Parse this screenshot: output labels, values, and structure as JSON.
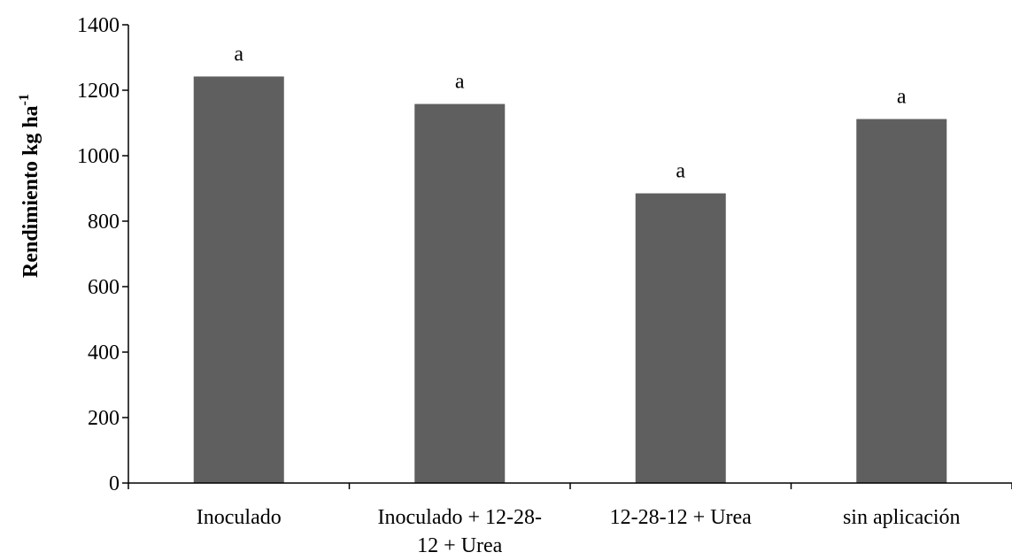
{
  "chart_data": {
    "type": "bar",
    "title": "",
    "xlabel": "",
    "ylabel": "Rendimiento kg ha",
    "ylabel_superscript": "-1",
    "categories": [
      [
        "Inoculado"
      ],
      [
        "Inoculado + 12-28-",
        "12 + Urea"
      ],
      [
        "12-28-12 + Urea"
      ],
      [
        "sin aplicación"
      ]
    ],
    "values": [
      1242,
      1158,
      885,
      1112
    ],
    "data_labels": [
      "a",
      "a",
      "a",
      "a"
    ],
    "ylim": [
      0,
      1400
    ],
    "yticks": [
      0,
      200,
      400,
      600,
      800,
      1000,
      1200,
      1400
    ],
    "grid": false,
    "legend": "none",
    "bar_color": "#5f5f5f",
    "axis_color": "#000000"
  }
}
